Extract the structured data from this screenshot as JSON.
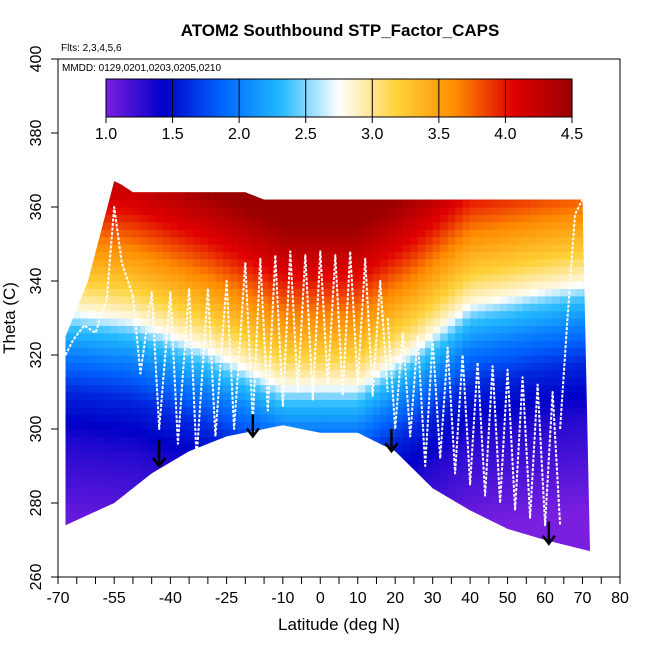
{
  "chart_data": {
    "type": "heatmap",
    "title": "ATOM2 Southbound STP_Factor_CAPS",
    "flights_note": "Flts: 2,3,4,5,6",
    "dates_note": "MMDD: 0129,0201,0203,0205,0210",
    "xlabel": "Latitude (deg N)",
    "ylabel": "Theta (C)",
    "xlim": [
      -70,
      80
    ],
    "ylim": [
      260,
      400
    ],
    "x_ticks": [
      -70,
      -55,
      -40,
      -25,
      -10,
      0,
      10,
      20,
      30,
      40,
      50,
      60,
      70,
      80
    ],
    "y_ticks": [
      260,
      280,
      300,
      320,
      340,
      360,
      380,
      400
    ],
    "colorbar": {
      "range": [
        1.0,
        4.5
      ],
      "ticks": [
        "1.0",
        "1.5",
        "2.0",
        "2.5",
        "3.0",
        "3.5",
        "4.0",
        "4.5"
      ],
      "colors": [
        "#7a1fe0",
        "#0000c8",
        "#0066ff",
        "#22b8ff",
        "#ffffff",
        "#ffd23a",
        "#ff8c00",
        "#e00000",
        "#9a0000"
      ]
    },
    "upper_boundary": [
      [
        -68,
        325
      ],
      [
        -62,
        340
      ],
      [
        -55,
        367
      ],
      [
        -53,
        366
      ],
      [
        -50,
        364
      ],
      [
        -20,
        364
      ],
      [
        -15,
        362
      ],
      [
        30,
        362
      ],
      [
        70,
        362
      ]
    ],
    "lower_boundary": [
      [
        -68,
        274
      ],
      [
        -55,
        280
      ],
      [
        -45,
        288
      ],
      [
        -35,
        294
      ],
      [
        -25,
        298
      ],
      [
        -10,
        301
      ],
      [
        0,
        299
      ],
      [
        10,
        299
      ],
      [
        20,
        294
      ],
      [
        30,
        284
      ],
      [
        40,
        278
      ],
      [
        50,
        273
      ],
      [
        60,
        270
      ],
      [
        72,
        267
      ]
    ],
    "value_stops": [
      [
        260,
        1.0
      ],
      [
        285,
        1.3
      ],
      [
        300,
        1.6
      ],
      [
        310,
        2.0
      ],
      [
        318,
        2.4
      ],
      [
        322,
        2.8
      ],
      [
        330,
        3.2
      ],
      [
        340,
        3.6
      ],
      [
        350,
        4.0
      ],
      [
        365,
        4.5
      ]
    ],
    "mid_lat_tropopause_shift": [
      [
        -65,
        10
      ],
      [
        -50,
        8
      ],
      [
        -30,
        0
      ],
      [
        -10,
        -10
      ],
      [
        10,
        -10
      ],
      [
        25,
        0
      ],
      [
        40,
        12
      ],
      [
        60,
        16
      ],
      [
        72,
        18
      ]
    ],
    "flight_profiles": [
      {
        "x": [
          -68,
          -66,
          -63,
          -60,
          -57,
          -55,
          -53,
          -50
        ],
        "y": [
          320,
          324,
          328,
          326,
          335,
          360,
          345,
          336
        ]
      },
      {
        "x": [
          -50,
          -48,
          -45,
          -43,
          -40,
          -38,
          -35,
          -33,
          -30,
          -28,
          -25,
          -23,
          -20
        ],
        "y": [
          336,
          315,
          337,
          300,
          337,
          296,
          338,
          292,
          338,
          298,
          340,
          300,
          345
        ]
      },
      {
        "x": [
          -20,
          -18,
          -16,
          -14,
          -12,
          -10,
          -8,
          -6,
          -4,
          -2,
          0,
          2,
          4,
          6,
          8,
          10,
          12,
          14,
          16,
          18
        ],
        "y": [
          345,
          302,
          346,
          305,
          347,
          306,
          348,
          310,
          347,
          308,
          348,
          312,
          347,
          309,
          348,
          312,
          346,
          309,
          340,
          310
        ]
      },
      {
        "x": [
          18,
          20,
          22,
          24,
          26,
          28,
          30,
          32,
          34,
          36,
          38,
          40,
          42,
          44,
          46,
          48,
          50,
          52,
          54,
          56,
          58,
          60,
          62,
          64
        ],
        "y": [
          330,
          300,
          326,
          298,
          325,
          290,
          324,
          292,
          322,
          288,
          320,
          285,
          318,
          282,
          317,
          280,
          316,
          278,
          314,
          276,
          312,
          274,
          310,
          274
        ]
      },
      {
        "x": [
          64,
          66,
          68,
          70
        ],
        "y": [
          300,
          330,
          358,
          362
        ]
      }
    ],
    "arrows": [
      {
        "x": -43,
        "y_top": 297,
        "y_bottom": 290
      },
      {
        "x": -18,
        "y_top": 304,
        "y_bottom": 298
      },
      {
        "x": 19,
        "y_top": 300,
        "y_bottom": 294
      },
      {
        "x": 61,
        "y_top": 275,
        "y_bottom": 269
      }
    ]
  }
}
